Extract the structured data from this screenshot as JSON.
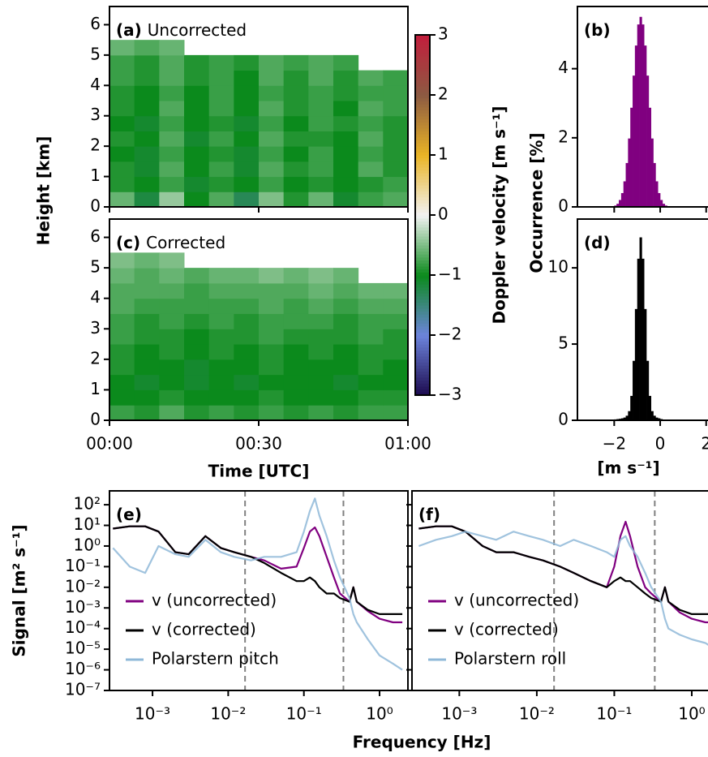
{
  "chart_data": [
    {
      "type": "heatmap",
      "panel_label": "(a)",
      "panel_title": "Uncorrected",
      "ylabel": "Height [km]",
      "xlim": [
        0,
        60
      ],
      "ylim": [
        0,
        6.6
      ],
      "yticks": [
        0,
        1,
        2,
        3,
        4,
        5,
        6
      ],
      "x": [
        2.5,
        7.5,
        12.5,
        17.5,
        22.5,
        27.5,
        32.5,
        37.5,
        42.5,
        47.5,
        52.5,
        57.5
      ],
      "y": [
        0.25,
        0.75,
        1.25,
        1.75,
        2.25,
        2.75,
        3.25,
        3.75,
        4.25,
        4.75,
        5.25
      ],
      "values": [
        [
          -0.6,
          -1.2,
          -0.4,
          -1.0,
          -0.7,
          -1.3,
          -0.5,
          -0.9,
          -0.6,
          -1.1,
          -0.8,
          -0.7
        ],
        [
          -0.9,
          -1.0,
          -0.8,
          -1.1,
          -0.9,
          -1.0,
          -0.8,
          -1.0,
          -0.9,
          -1.0,
          -0.9,
          -0.8
        ],
        [
          -0.9,
          -1.1,
          -0.7,
          -1.0,
          -0.8,
          -1.1,
          -0.7,
          -0.9,
          -0.8,
          -1.0,
          -0.7,
          -0.9
        ],
        [
          -1.0,
          -1.1,
          -0.8,
          -1.0,
          -0.9,
          -1.1,
          -0.8,
          -1.0,
          -0.8,
          -1.0,
          -0.8,
          -0.9
        ],
        [
          -0.9,
          -1.0,
          -0.7,
          -1.1,
          -0.8,
          -1.0,
          -0.7,
          -0.9,
          -0.9,
          -1.0,
          -0.7,
          -0.9
        ],
        [
          -1.0,
          -1.1,
          -0.8,
          -1.0,
          -0.9,
          -1.1,
          -0.8,
          -1.0,
          -0.8,
          -0.9,
          -0.8,
          -0.9
        ],
        [
          -0.9,
          -1.0,
          -0.7,
          -1.0,
          -0.8,
          -1.0,
          -0.7,
          -0.9,
          -0.8,
          -1.0,
          -0.7,
          -0.8
        ],
        [
          -0.9,
          -1.0,
          -0.8,
          -1.0,
          -0.8,
          -1.0,
          -0.8,
          -0.9,
          -0.8,
          -0.9,
          -0.8,
          -0.8
        ],
        [
          -0.8,
          -0.9,
          -0.7,
          -0.9,
          -0.8,
          -1.0,
          -0.7,
          -0.9,
          -0.7,
          -0.9,
          -0.7,
          -0.8
        ],
        [
          -0.8,
          -0.9,
          -0.7,
          -0.9,
          -0.8,
          -0.9,
          -0.7,
          -0.8,
          -0.7,
          -0.8,
          null,
          null
        ],
        [
          -0.6,
          -0.7,
          -0.6,
          null,
          null,
          null,
          null,
          null,
          null,
          null,
          null,
          null
        ]
      ],
      "colorbar": {
        "label": "Doppler velocity [m s⁻¹]",
        "zlim": [
          -3,
          3
        ],
        "zticks": [
          {
            "value": -3,
            "label": "−3"
          },
          {
            "value": -2,
            "label": "−2"
          },
          {
            "value": -1,
            "label": "−1"
          },
          0,
          1,
          2,
          3
        ],
        "colors": [
          "#1c0a4e",
          "#6c84dc",
          "#0b8a1c",
          "#f2f2f2",
          "#e9b425",
          "#8c5a42",
          "#c21e3c"
        ]
      }
    },
    {
      "type": "heatmap",
      "panel_label": "(c)",
      "panel_title": "Corrected",
      "xlabel": "Time [UTC]",
      "xlim": [
        0,
        60
      ],
      "ylim": [
        0,
        6.6
      ],
      "yticks": [
        0,
        1,
        2,
        3,
        4,
        5,
        6
      ],
      "xticks": [
        {
          "value": 0,
          "label": "00:00"
        },
        {
          "value": 30,
          "label": "00:30"
        },
        {
          "value": 60,
          "label": "01:00"
        }
      ],
      "x": [
        2.5,
        7.5,
        12.5,
        17.5,
        22.5,
        27.5,
        32.5,
        37.5,
        42.5,
        47.5,
        52.5,
        57.5
      ],
      "y": [
        0.25,
        0.75,
        1.25,
        1.75,
        2.25,
        2.75,
        3.25,
        3.75,
        4.25,
        4.75,
        5.25
      ],
      "values": [
        [
          -0.8,
          -0.9,
          -0.7,
          -0.9,
          -0.8,
          -0.9,
          -0.8,
          -0.9,
          -0.8,
          -0.9,
          -0.8,
          -0.8
        ],
        [
          -1.0,
          -1.0,
          -0.9,
          -1.0,
          -1.0,
          -1.0,
          -0.9,
          -1.0,
          -1.0,
          -1.0,
          -0.9,
          -0.9
        ],
        [
          -1.0,
          -1.1,
          -1.0,
          -1.1,
          -1.0,
          -1.1,
          -1.0,
          -1.0,
          -1.0,
          -1.1,
          -1.0,
          -1.0
        ],
        [
          -0.9,
          -1.0,
          -1.0,
          -1.1,
          -1.0,
          -1.0,
          -0.9,
          -1.0,
          -1.0,
          -1.0,
          -0.9,
          -1.0
        ],
        [
          -0.9,
          -1.0,
          -0.9,
          -1.0,
          -0.9,
          -1.0,
          -0.9,
          -1.0,
          -0.9,
          -1.0,
          -0.9,
          -0.9
        ],
        [
          -0.8,
          -0.9,
          -0.9,
          -1.0,
          -0.9,
          -0.9,
          -0.8,
          -0.9,
          -0.9,
          -0.9,
          -0.8,
          -0.9
        ],
        [
          -0.8,
          -0.9,
          -0.8,
          -0.9,
          -0.8,
          -0.9,
          -0.8,
          -0.8,
          -0.8,
          -0.9,
          -0.8,
          -0.8
        ],
        [
          -0.7,
          -0.8,
          -0.8,
          -0.8,
          -0.8,
          -0.8,
          -0.7,
          -0.8,
          -0.7,
          -0.8,
          -0.7,
          -0.7
        ],
        [
          -0.7,
          -0.7,
          -0.7,
          -0.8,
          -0.7,
          -0.7,
          -0.7,
          -0.7,
          -0.6,
          -0.7,
          -0.6,
          -0.6
        ],
        [
          -0.6,
          -0.7,
          -0.6,
          -0.7,
          -0.6,
          -0.6,
          -0.5,
          -0.6,
          -0.5,
          -0.6,
          null,
          null
        ],
        [
          -0.5,
          -0.6,
          -0.5,
          null,
          null,
          null,
          null,
          null,
          null,
          null,
          null,
          null
        ]
      ]
    },
    {
      "type": "histogram",
      "panel_label": "(b)",
      "ylabel": "Occurrence [%]",
      "color": "#800080",
      "xlim": [
        -3.6,
        2.15
      ],
      "ylim": [
        0,
        5.8
      ],
      "yticks": [
        0,
        2,
        4
      ],
      "bins": [
        -2.5,
        -2.4,
        -2.3,
        -2.2,
        -2.1,
        -2.0,
        -1.9,
        -1.8,
        -1.7,
        -1.6,
        -1.5,
        -1.4,
        -1.3,
        -1.2,
        -1.1,
        -1.0,
        -0.9,
        -0.8,
        -0.7,
        -0.6,
        -0.5,
        -0.4,
        -0.3,
        -0.2,
        -0.1,
        0.0,
        0.1,
        0.2,
        0.3,
        0.4,
        0.5
      ],
      "values": [
        0.0,
        0.0,
        0.0,
        0.01,
        0.02,
        0.04,
        0.09,
        0.2,
        0.4,
        0.74,
        1.27,
        1.98,
        2.87,
        3.8,
        4.67,
        5.28,
        5.5,
        5.28,
        4.67,
        3.8,
        2.87,
        1.98,
        1.27,
        0.74,
        0.4,
        0.2,
        0.09,
        0.04,
        0.02,
        0.01
      ]
    },
    {
      "type": "histogram",
      "panel_label": "(d)",
      "xlabel": "[m s⁻¹]",
      "color": "#000000",
      "xlim": [
        -3.6,
        2.15
      ],
      "ylim": [
        0,
        13.2
      ],
      "yticks": [
        0,
        5,
        10
      ],
      "xticks": [
        {
          "value": -2,
          "label": "−2"
        },
        0,
        2
      ],
      "bins": [
        -2.5,
        -2.4,
        -2.3,
        -2.2,
        -2.1,
        -2.0,
        -1.9,
        -1.8,
        -1.7,
        -1.6,
        -1.5,
        -1.4,
        -1.3,
        -1.2,
        -1.1,
        -1.0,
        -0.9,
        -0.8,
        -0.7,
        -0.6,
        -0.5,
        -0.4,
        -0.3,
        -0.2,
        -0.1,
        0.0,
        0.1,
        0.2,
        0.3,
        0.4,
        0.5
      ],
      "values": [
        0.02,
        0.02,
        0.03,
        0.04,
        0.05,
        0.06,
        0.08,
        0.1,
        0.13,
        0.18,
        0.3,
        0.6,
        1.6,
        3.9,
        7.3,
        10.6,
        12,
        10.6,
        7.3,
        3.9,
        1.6,
        0.6,
        0.3,
        0.18,
        0.13,
        0.08,
        0.05,
        0.03,
        0.02,
        0.01
      ]
    },
    {
      "type": "line",
      "panel_label": "(e)",
      "ylabel": "Signal [m² s⁻¹]",
      "xlabel": "Frequency [Hz]",
      "xscale": "log",
      "yscale": "log",
      "xlim": [
        0.00027,
        2.37
      ],
      "ylim": [
        1e-07,
        470
      ],
      "legend": "lower left",
      "xticks": [
        {
          "value": 0.001,
          "label": "10⁻³"
        },
        {
          "value": 0.01,
          "label": "10⁻²"
        },
        {
          "value": 0.1,
          "label": "10⁻¹"
        },
        {
          "value": 1,
          "label": "10⁰"
        }
      ],
      "yticks": [
        {
          "value": 1e-07,
          "label": "10⁻⁷"
        },
        {
          "value": 1e-06,
          "label": "10⁻⁶"
        },
        {
          "value": 1e-05,
          "label": "10⁻⁵"
        },
        {
          "value": 0.0001,
          "label": "10⁻⁴"
        },
        {
          "value": 0.001,
          "label": "10⁻³"
        },
        {
          "value": 0.01,
          "label": "10⁻²"
        },
        {
          "value": 0.1,
          "label": "10⁻¹"
        },
        {
          "value": 1,
          "label": "10⁰"
        },
        {
          "value": 10,
          "label": "10¹"
        },
        {
          "value": 100,
          "label": "10²"
        }
      ],
      "vlines": [
        0.0167,
        0.333
      ],
      "x": [
        0.0003,
        0.0005,
        0.0008,
        0.0012,
        0.002,
        0.003,
        0.005,
        0.008,
        0.012,
        0.02,
        0.03,
        0.05,
        0.08,
        0.1,
        0.12,
        0.14,
        0.16,
        0.2,
        0.25,
        0.3,
        0.4,
        0.45,
        0.5,
        0.7,
        1,
        1.5,
        2
      ],
      "series": [
        {
          "name": "v (uncorrected)",
          "color": "#800080",
          "values": [
            7,
            9,
            9,
            5,
            0.5,
            0.4,
            3,
            0.8,
            0.5,
            0.3,
            0.2,
            0.08,
            0.1,
            0.8,
            5,
            8,
            3,
            0.3,
            0.03,
            0.005,
            0.002,
            0.01,
            0.002,
            0.0007,
            0.0003,
            0.0002,
            0.0002
          ]
        },
        {
          "name": "v (corrected)",
          "color": "#000000",
          "values": [
            7,
            9,
            9,
            5,
            0.5,
            0.4,
            3,
            0.8,
            0.5,
            0.3,
            0.15,
            0.05,
            0.02,
            0.02,
            0.03,
            0.02,
            0.01,
            0.005,
            0.005,
            0.003,
            0.002,
            0.01,
            0.002,
            0.0008,
            0.0005,
            0.0005,
            0.0005
          ]
        },
        {
          "name": "Polarstern pitch",
          "color": "#8fb8d8",
          "values": [
            0.8,
            0.1,
            0.05,
            1,
            0.4,
            0.3,
            2,
            0.5,
            0.3,
            0.2,
            0.3,
            0.3,
            0.5,
            5,
            50,
            200,
            30,
            3,
            0.2,
            0.03,
            0.003,
            0.0005,
            0.0002,
            3e-05,
            5e-06,
            2e-06,
            1e-06
          ]
        }
      ]
    },
    {
      "type": "line",
      "panel_label": "(f)",
      "xscale": "log",
      "yscale": "log",
      "xlim": [
        0.000245,
        1.7
      ],
      "ylim": [
        1e-07,
        470
      ],
      "legend": "lower left",
      "xticks": [
        {
          "value": 0.001,
          "label": "10⁻³"
        },
        {
          "value": 0.01,
          "label": "10⁻²"
        },
        {
          "value": 0.1,
          "label": "10⁻¹"
        },
        {
          "value": 1,
          "label": "10⁰"
        }
      ],
      "vlines": [
        0.0167,
        0.333
      ],
      "x": [
        0.0003,
        0.0005,
        0.0008,
        0.0012,
        0.002,
        0.003,
        0.005,
        0.008,
        0.012,
        0.02,
        0.03,
        0.05,
        0.08,
        0.1,
        0.12,
        0.14,
        0.16,
        0.2,
        0.25,
        0.3,
        0.4,
        0.45,
        0.5,
        0.7,
        1,
        1.5,
        2
      ],
      "series": [
        {
          "name": "v (uncorrected)",
          "color": "#800080",
          "values": [
            7,
            9,
            9,
            5,
            1,
            0.5,
            0.5,
            0.3,
            0.2,
            0.1,
            0.05,
            0.02,
            0.01,
            0.1,
            3,
            15,
            3,
            0.1,
            0.01,
            0.005,
            0.002,
            0.01,
            0.002,
            0.0006,
            0.0003,
            0.0002,
            0.0002
          ]
        },
        {
          "name": "v (corrected)",
          "color": "#000000",
          "values": [
            7,
            9,
            9,
            5,
            1,
            0.5,
            0.5,
            0.3,
            0.2,
            0.1,
            0.05,
            0.02,
            0.01,
            0.02,
            0.03,
            0.02,
            0.02,
            0.01,
            0.005,
            0.003,
            0.002,
            0.01,
            0.002,
            0.0008,
            0.0005,
            0.0005,
            0.0005
          ]
        },
        {
          "name": "Polarstern roll",
          "color": "#8fb8d8",
          "values": [
            1,
            2,
            3,
            5,
            3,
            2,
            5,
            3,
            2,
            1,
            2,
            1,
            0.5,
            0.3,
            2,
            3,
            1,
            0.3,
            0.05,
            0.01,
            0.002,
            0.0003,
            0.0001,
            5e-05,
            3e-05,
            2e-05,
            1e-05
          ]
        }
      ]
    }
  ]
}
